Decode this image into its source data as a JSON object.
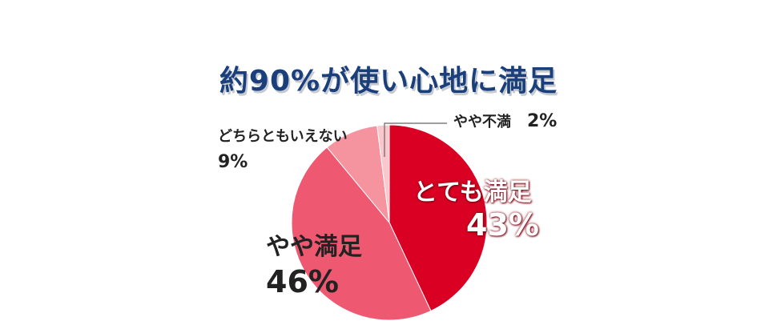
{
  "title": "約90%が使い心地に満足",
  "chart_data": {
    "type": "pie",
    "start_angle_deg": 0,
    "direction": "clockwise",
    "slices": [
      {
        "label": "とても満足",
        "value": 43,
        "value_text": "43%",
        "color": "#d90024"
      },
      {
        "label": "やや満足",
        "value": 46,
        "value_text": "46%",
        "color": "#ee5870"
      },
      {
        "label": "どちらともいえない",
        "value": 9,
        "value_text": "9%",
        "color": "#f5949f"
      },
      {
        "label": "やや不満",
        "value": 2,
        "value_text": "2%",
        "color": "#f9c7cc"
      }
    ]
  }
}
